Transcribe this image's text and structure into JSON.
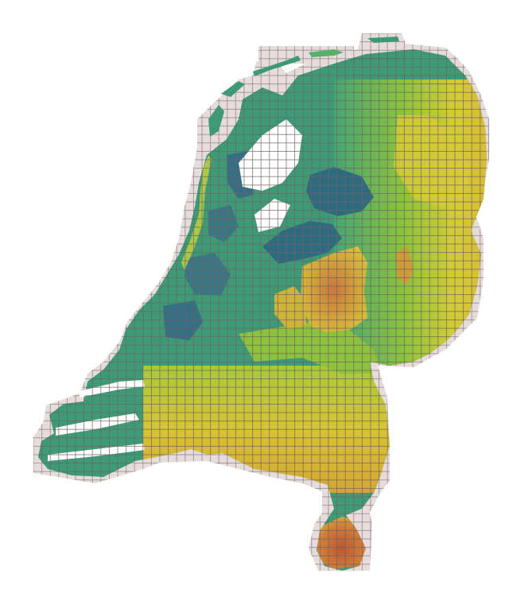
{
  "map": {
    "type": "elevation-tile-map",
    "region": "Netherlands",
    "legend": null,
    "title": "",
    "labels": [],
    "colors": {
      "background": "#ffffff",
      "tile_fill": "#e6dcdc",
      "tile_stroke": "#7a6f6f",
      "water": "#2f6b80",
      "polder_low": "#3f7f86",
      "coastal": "#3c9a76",
      "lowland_green": "#45a572",
      "mid_green": "#7fbe3c",
      "yellow_green": "#c9d23a",
      "upland_yellow": "#d9b734",
      "ridge_orange": "#cf8d3b",
      "peak_red": "#c25b33"
    },
    "elevation_classes": [
      "water",
      "polder_low",
      "coastal",
      "lowland_green",
      "mid_green",
      "yellow_green",
      "upland_yellow",
      "ridge_orange",
      "peak_red"
    ]
  }
}
